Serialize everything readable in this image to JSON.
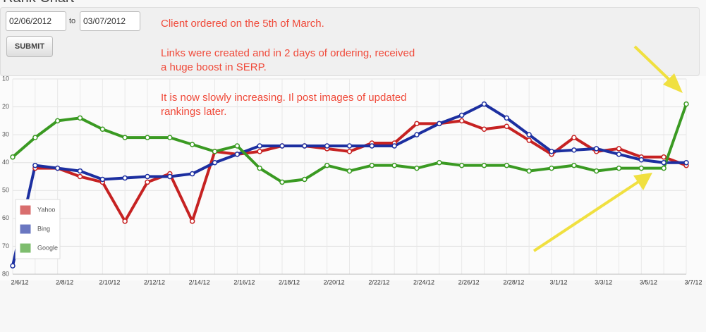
{
  "header": {
    "title": "Rank Chart"
  },
  "form": {
    "from": "02/06/2012",
    "to_label": "to",
    "to": "03/07/2012",
    "submit": "SUBMIT"
  },
  "chart_data": {
    "type": "line",
    "annotations": [
      "Client ordered on the 5th of March.",
      "Links were created and in 2 days of ordering, received",
      "a huge boost in SERP.",
      "It is now slowly increasing. Il post images of updated",
      "rankings later."
    ],
    "categories": [
      "2/6/12",
      null,
      "2/8/12",
      null,
      "2/10/12",
      null,
      "2/12/12",
      null,
      "2/14/12",
      null,
      "2/16/12",
      null,
      "2/18/12",
      null,
      "2/20/12",
      null,
      "2/22/12",
      null,
      "2/24/12",
      null,
      "2/26/12",
      null,
      "2/28/12",
      null,
      "3/1/12",
      null,
      "3/3/12",
      null,
      "3/5/12",
      null,
      "3/7/12"
    ],
    "series": [
      {
        "name": "Yahoo",
        "color": "#c62222",
        "values": [
          null,
          42,
          42,
          45,
          47,
          61,
          47,
          44,
          61,
          36,
          37,
          36,
          34,
          34,
          35,
          36,
          33,
          33,
          26,
          26,
          25,
          28,
          27,
          32,
          37,
          31,
          36,
          35,
          38,
          38,
          41
        ]
      },
      {
        "name": "Bing",
        "color": "#1c2fa0",
        "values": [
          77,
          41,
          42,
          43,
          46,
          45.5,
          45,
          45,
          44,
          40,
          37,
          34,
          34,
          34,
          34,
          34,
          34,
          34,
          30,
          26,
          23,
          19,
          24,
          30,
          36,
          35.5,
          35,
          37,
          39,
          40,
          40
        ]
      },
      {
        "name": "Google",
        "color": "#3a9a22",
        "values": [
          38,
          31,
          25,
          24,
          28,
          31,
          31,
          31,
          33.5,
          36,
          34,
          42,
          47,
          46,
          41,
          43,
          41,
          41,
          42,
          40,
          41,
          41,
          41,
          43,
          42,
          41,
          43,
          42,
          42,
          42,
          19
        ]
      }
    ],
    "ylim": [
      80,
      10
    ],
    "yticks": [
      10,
      20,
      30,
      40,
      50,
      60,
      70,
      80
    ],
    "grid": true,
    "legend": "bottom-left"
  }
}
